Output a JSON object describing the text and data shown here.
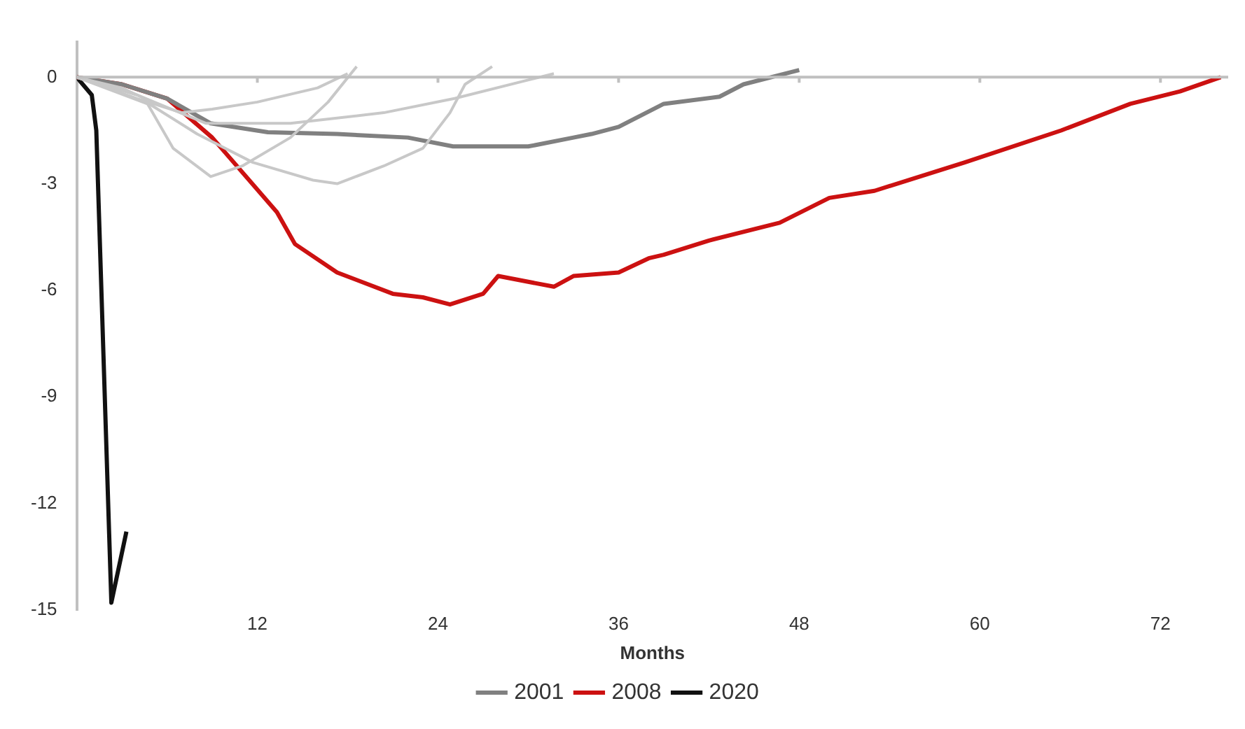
{
  "chart_data": {
    "type": "line",
    "xlabel": "Months",
    "xlim": [
      0,
      76.5
    ],
    "xticks": [
      12,
      24,
      36,
      48,
      60,
      72
    ],
    "ylim": [
      -15,
      1
    ],
    "yticks": [
      0,
      -3,
      -6,
      -9,
      -12,
      -15
    ],
    "legend": "bottom",
    "series": [
      {
        "color": "#c8c8c8",
        "x": [
          0,
          4,
          7,
          9,
          12,
          16,
          18
        ],
        "values": [
          0,
          -0.6,
          -1.0,
          -0.9,
          -0.7,
          -0.3,
          0.1
        ]
      },
      {
        "color": "#c8c8c8",
        "x": [
          0,
          3,
          4.5,
          6.4,
          8.9,
          11,
          14.2,
          16.7,
          18.6
        ],
        "values": [
          0,
          -0.3,
          -0.6,
          -2.0,
          -2.8,
          -2.5,
          -1.7,
          -0.7,
          0.3
        ]
      },
      {
        "color": "#c8c8c8",
        "x": [
          0,
          5,
          8,
          11.7,
          15.7,
          17.3,
          20.4,
          23,
          24.8,
          25.8,
          27.6
        ],
        "values": [
          0,
          -0.8,
          -1.6,
          -2.4,
          -2.9,
          -3.0,
          -2.5,
          -2.0,
          -1.0,
          -0.2,
          0.3
        ]
      },
      {
        "color": "#c8c8c8",
        "x": [
          0,
          4,
          8.6,
          14.2,
          20.4,
          25.1,
          29.8,
          31.7
        ],
        "values": [
          0,
          -0.5,
          -1.3,
          -1.3,
          -1.0,
          -0.6,
          -0.1,
          0.1
        ]
      },
      {
        "name": "2001",
        "color": "#808080",
        "x": [
          0,
          3,
          6,
          8.9,
          12.7,
          17.3,
          22,
          25,
          30,
          33,
          34.2,
          36,
          39,
          42.7,
          44.3,
          48
        ],
        "values": [
          0,
          -0.2,
          -0.6,
          -1.3,
          -1.55,
          -1.6,
          -1.7,
          -1.95,
          -1.95,
          -1.7,
          -1.6,
          -1.4,
          -0.75,
          -0.55,
          -0.2,
          0.2
        ]
      },
      {
        "name": "2008",
        "color": "#cc1111",
        "x": [
          0,
          3,
          6,
          9,
          13.3,
          14.5,
          17.3,
          21,
          23,
          24.8,
          27,
          28,
          31.7,
          33,
          36,
          38,
          39,
          42,
          46.7,
          50,
          53,
          59,
          65.4,
          70,
          73.3,
          76
        ],
        "values": [
          0,
          -0.2,
          -0.6,
          -1.7,
          -3.8,
          -4.7,
          -5.5,
          -6.1,
          -6.2,
          -6.4,
          -6.1,
          -5.6,
          -5.9,
          -5.6,
          -5.5,
          -5.1,
          -5.0,
          -4.6,
          -4.1,
          -3.4,
          -3.2,
          -2.4,
          -1.5,
          -0.75,
          -0.4,
          0
        ]
      },
      {
        "name": "2020",
        "color": "#111111",
        "x": [
          0,
          1,
          1.3,
          2.3,
          3.3
        ],
        "values": [
          0,
          -0.5,
          -1.5,
          -14.8,
          -12.8
        ]
      }
    ]
  }
}
